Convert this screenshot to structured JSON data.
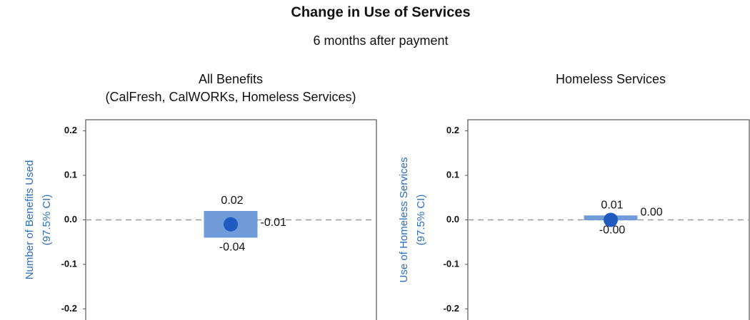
{
  "title": "Change in Use of Services",
  "subtitle": "6 months after payment",
  "chart_data": [
    {
      "type": "interval",
      "title": [
        "All Benefits",
        "(CalFresh, CalWORKs, Homeless Services)"
      ],
      "ylabel": [
        "Number of Benefits Used",
        "(97.5% CI)"
      ],
      "ylim": [
        -0.225,
        0.225
      ],
      "yticks": [
        0.2,
        0.1,
        {
          "value": 0,
          "label": "0.0"
        },
        -0.1,
        -0.2
      ],
      "estimate": -0.01,
      "ci": [
        -0.04,
        0.02
      ],
      "color": "#6f9bd8",
      "point_color": "#1f5bc1"
    },
    {
      "type": "interval",
      "title": [
        "Homeless Services"
      ],
      "ylabel": [
        "Use of Homeless Services",
        "(97.5% CI)"
      ],
      "ylim": [
        -0.225,
        0.225
      ],
      "yticks": [
        0.2,
        0.1,
        {
          "value": 0,
          "label": "0.0"
        },
        -0.1,
        -0.2
      ],
      "estimate": 0,
      "estimate_label": "0.00",
      "ci": [
        -0.001,
        0.01
      ],
      "ci_labels": [
        "-0.00",
        "0.01"
      ],
      "color": "#6f9bd8",
      "point_color": "#1f5bc1"
    }
  ]
}
